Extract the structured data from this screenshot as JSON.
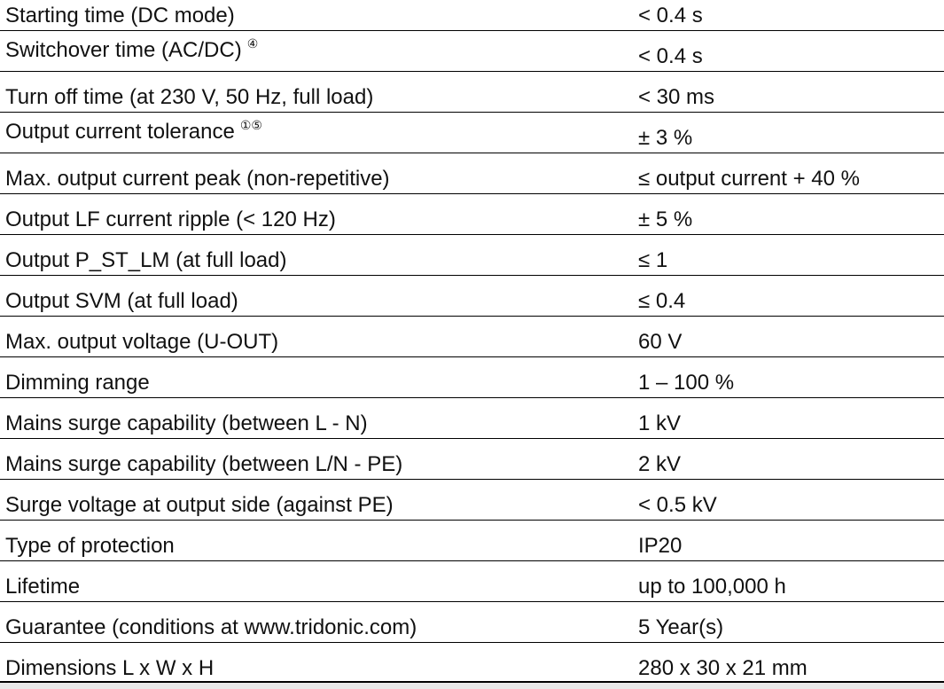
{
  "table": {
    "rows": [
      {
        "label": "Starting time (DC mode)",
        "value": "< 0.4 s"
      },
      {
        "label": "Switchover time (AC/DC)",
        "note": "④",
        "value": "< 0.4 s"
      },
      {
        "label": "Turn off time (at 230 V, 50 Hz, full load)",
        "value": "< 30 ms"
      },
      {
        "label": "Output current tolerance",
        "note": "①⑤",
        "value": "± 3 %"
      },
      {
        "label": "Max. output current peak (non-repetitive)",
        "value": "≤ output current + 40 %"
      },
      {
        "label": "Output LF current ripple (< 120 Hz)",
        "value": "± 5 %"
      },
      {
        "label": "Output P_ST_LM (at full load)",
        "value": "≤ 1"
      },
      {
        "label": "Output SVM (at full load)",
        "value": "≤ 0.4"
      },
      {
        "label": "Max. output voltage (U-OUT)",
        "value": "60 V"
      },
      {
        "label": "Dimming range",
        "value": "1 – 100 %"
      },
      {
        "label": "Mains surge capability (between L - N)",
        "value": "1 kV"
      },
      {
        "label": "Mains surge capability (between L/N - PE)",
        "value": "2 kV"
      },
      {
        "label": "Surge voltage at output side (against PE)",
        "value": "< 0.5 kV"
      },
      {
        "label": "Type of protection",
        "value": "IP20"
      },
      {
        "label": "Lifetime",
        "value": "up to 100,000 h"
      },
      {
        "label": "Guarantee (conditions at www.tridonic.com)",
        "value": "5 Year(s)"
      },
      {
        "label": "Dimensions L x W x H",
        "value": "280 x 30 x 21 mm"
      }
    ]
  }
}
